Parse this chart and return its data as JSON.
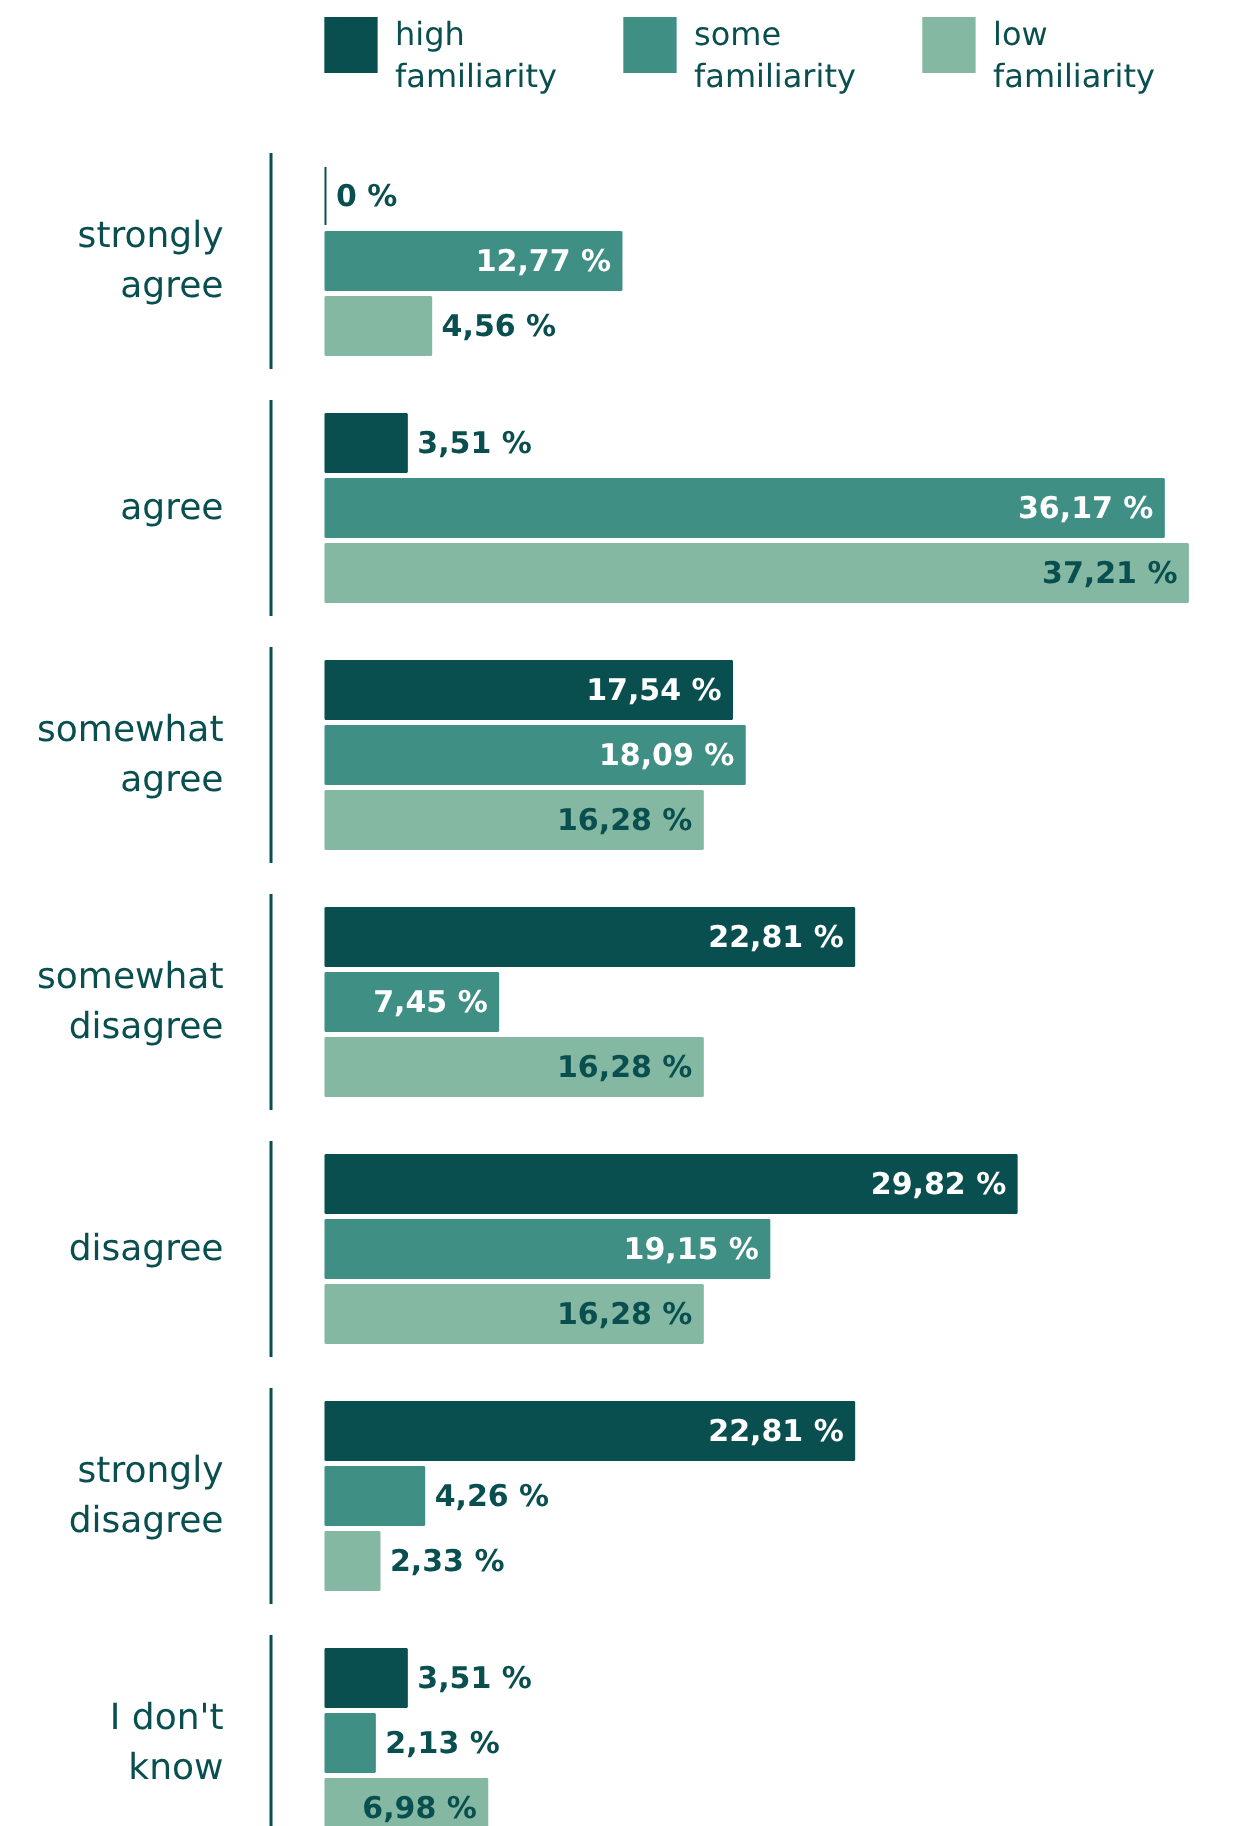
{
  "chart_data": {
    "type": "bar",
    "orientation": "horizontal",
    "legend": "top left",
    "categories": [
      "strongly agree",
      "agree",
      "somewhat agree",
      "somewhat disagree",
      "disagree",
      "strongly disagree",
      "I don't know"
    ],
    "series": [
      {
        "name": "high familiarity",
        "color": "#0a4f4f",
        "values": [
          0,
          3.51,
          17.54,
          22.81,
          29.82,
          22.81,
          3.51
        ],
        "value_labels": [
          "0 %",
          "3,51 %",
          "17,54 %",
          "22,81 %",
          "29,82 %",
          "22,81 %",
          "3,51 %"
        ]
      },
      {
        "name": "some familiarity",
        "color": "#3f8f85",
        "values": [
          12.77,
          36.17,
          18.09,
          7.45,
          19.15,
          4.26,
          2.13
        ],
        "value_labels": [
          "12,77 %",
          "36,17 %",
          "18,09 %",
          "7,45 %",
          "19,15 %",
          "4,26 %",
          "2,13 %"
        ]
      },
      {
        "name": "low familiarity",
        "color": "#85b8a3",
        "values": [
          4.56,
          37.21,
          16.28,
          16.28,
          16.28,
          2.33,
          6.98
        ],
        "value_labels": [
          "4,56 %",
          "37,21 %",
          "16,28 %",
          "16,28 %",
          "16,28 %",
          "2,33 %",
          "6,98 %"
        ]
      }
    ]
  }
}
